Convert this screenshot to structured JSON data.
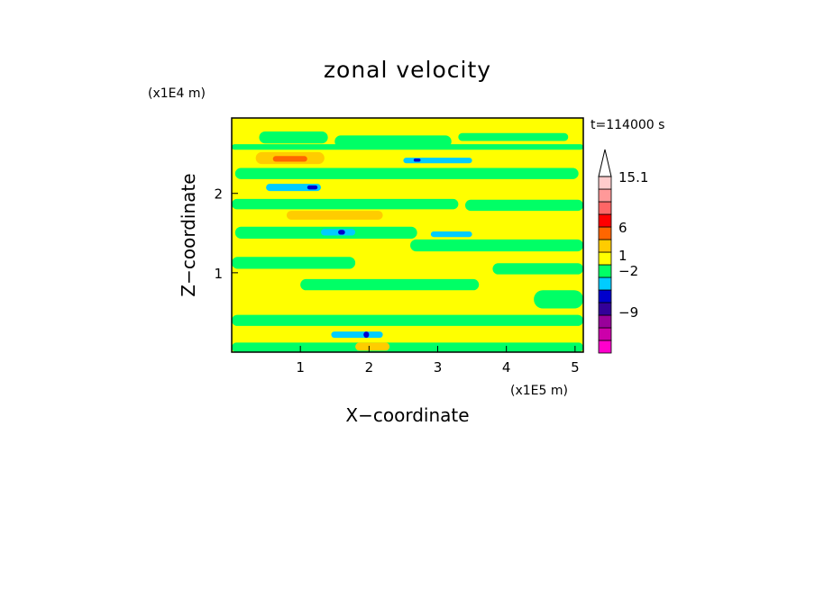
{
  "chart_data": {
    "type": "heatmap",
    "title": "zonal velocity",
    "xlabel": "X−coordinate",
    "ylabel": "Z−coordinate",
    "x_unit": "(x1E5 m)",
    "y_unit": "(x1E4 m)",
    "time_label": "t=114000 s",
    "xlim": [
      0,
      5.12
    ],
    "ylim": [
      0,
      2.95
    ],
    "x_ticks": [
      {
        "value": 1,
        "label": "1"
      },
      {
        "value": 2,
        "label": "2"
      },
      {
        "value": 3,
        "label": "3"
      },
      {
        "value": 4,
        "label": "4"
      },
      {
        "value": 5,
        "label": "5"
      }
    ],
    "y_ticks": [
      {
        "value": 1,
        "label": "1"
      },
      {
        "value": 2,
        "label": "2"
      }
    ],
    "colorbar": {
      "colors": [
        "#ff00cc",
        "#cc00aa",
        "#99009a",
        "#330099",
        "#0000cc",
        "#00ccff",
        "#00ff66",
        "#ffff00",
        "#ffcc00",
        "#ff6600",
        "#ff0000",
        "#ff6666",
        "#ff9999",
        "#ffcccc"
      ],
      "labels": [
        "15.1",
        "6",
        "1",
        "−2",
        "−9"
      ]
    },
    "background_level": "#ffff00",
    "regions": [
      {
        "color": "#00ff66",
        "x": [
          0.0,
          5.12
        ],
        "z": [
          2.55,
          2.62
        ]
      },
      {
        "color": "#00ff66",
        "x": [
          0.4,
          1.4
        ],
        "z": [
          2.63,
          2.78
        ]
      },
      {
        "color": "#00ff66",
        "x": [
          1.5,
          3.2
        ],
        "z": [
          2.58,
          2.73
        ]
      },
      {
        "color": "#00ff66",
        "x": [
          3.3,
          4.9
        ],
        "z": [
          2.66,
          2.76
        ]
      },
      {
        "color": "#ffcc00",
        "x": [
          0.35,
          1.35
        ],
        "z": [
          2.37,
          2.52
        ]
      },
      {
        "color": "#ff6600",
        "x": [
          0.6,
          1.1
        ],
        "z": [
          2.4,
          2.47
        ]
      },
      {
        "color": "#00ff66",
        "x": [
          0.05,
          5.05
        ],
        "z": [
          2.18,
          2.32
        ]
      },
      {
        "color": "#00ccff",
        "x": [
          0.5,
          1.3
        ],
        "z": [
          2.03,
          2.12
        ]
      },
      {
        "color": "#0000cc",
        "x": [
          1.1,
          1.25
        ],
        "z": [
          2.05,
          2.1
        ]
      },
      {
        "color": "#00ccff",
        "x": [
          2.5,
          3.5
        ],
        "z": [
          2.38,
          2.45
        ]
      },
      {
        "color": "#0000cc",
        "x": [
          2.65,
          2.75
        ],
        "z": [
          2.4,
          2.44
        ]
      },
      {
        "color": "#00ff66",
        "x": [
          0.0,
          3.3
        ],
        "z": [
          1.8,
          1.93
        ]
      },
      {
        "color": "#00ff66",
        "x": [
          3.4,
          5.12
        ],
        "z": [
          1.78,
          1.92
        ]
      },
      {
        "color": "#ffcc00",
        "x": [
          0.8,
          2.2
        ],
        "z": [
          1.67,
          1.78
        ]
      },
      {
        "color": "#00ff66",
        "x": [
          0.05,
          2.7
        ],
        "z": [
          1.43,
          1.58
        ]
      },
      {
        "color": "#00ccff",
        "x": [
          1.3,
          1.8
        ],
        "z": [
          1.47,
          1.55
        ]
      },
      {
        "color": "#0000cc",
        "x": [
          1.55,
          1.65
        ],
        "z": [
          1.48,
          1.54
        ]
      },
      {
        "color": "#00ff66",
        "x": [
          2.6,
          5.12
        ],
        "z": [
          1.27,
          1.42
        ]
      },
      {
        "color": "#00ccff",
        "x": [
          2.9,
          3.5
        ],
        "z": [
          1.45,
          1.52
        ]
      },
      {
        "color": "#00ff66",
        "x": [
          0.0,
          1.8
        ],
        "z": [
          1.05,
          1.2
        ]
      },
      {
        "color": "#00ff66",
        "x": [
          3.8,
          5.12
        ],
        "z": [
          0.98,
          1.12
        ]
      },
      {
        "color": "#00ff66",
        "x": [
          1.0,
          3.6
        ],
        "z": [
          0.78,
          0.92
        ]
      },
      {
        "color": "#00ff66",
        "x": [
          4.4,
          5.12
        ],
        "z": [
          0.55,
          0.78
        ]
      },
      {
        "color": "#00ff66",
        "x": [
          0.0,
          5.12
        ],
        "z": [
          0.33,
          0.47
        ]
      },
      {
        "color": "#00ff66",
        "x": [
          0.0,
          5.12
        ],
        "z": [
          0.0,
          0.12
        ]
      },
      {
        "color": "#00ccff",
        "x": [
          1.45,
          2.2
        ],
        "z": [
          0.18,
          0.26
        ]
      },
      {
        "color": "#0000cc",
        "x": [
          1.92,
          2.0
        ],
        "z": [
          0.18,
          0.26
        ]
      },
      {
        "color": "#ffcc00",
        "x": [
          1.8,
          2.3
        ],
        "z": [
          0.02,
          0.12
        ]
      }
    ]
  }
}
